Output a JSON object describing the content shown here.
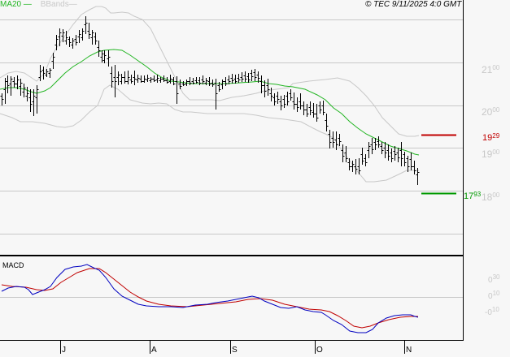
{
  "header": {
    "legend_ma": "MA20",
    "legend_bb": "BBands",
    "copyright": "© TEC 9/11/2025 4:0 GMT"
  },
  "price_axis": {
    "labels": [
      {
        "int": "21",
        "dec": "00",
        "value": 21.0
      },
      {
        "int": "20",
        "dec": "00",
        "value": 20.0
      },
      {
        "int": "19",
        "dec": "00",
        "value": 19.0
      },
      {
        "int": "18",
        "dec": "00",
        "value": 18.0
      }
    ]
  },
  "markers": {
    "resistance": {
      "int": "19",
      "dec": "29",
      "value": 19.29,
      "color": "#c00000"
    },
    "support": {
      "int": "17",
      "dec": "93",
      "value": 17.93,
      "color": "#009900"
    }
  },
  "macd": {
    "title": "MACD",
    "labels": [
      {
        "int": "0",
        "dec": "30"
      },
      {
        "int": "0",
        "dec": "10"
      },
      {
        "int": "-0",
        "dec": "10"
      }
    ]
  },
  "x_axis": {
    "labels": [
      "J",
      "A",
      "S",
      "O",
      "N"
    ]
  },
  "colors": {
    "background": "#f7f7f7",
    "grid": "#c8c8c8",
    "ma20": "#22b522",
    "bbands": "#c8c8c8",
    "macd_line": "#0000c0",
    "signal_line": "#c00000"
  },
  "chart_data": [
    {
      "type": "line",
      "title": "Price (OHLC bars) with MA20 and Bollinger Bands",
      "xlabel": "",
      "ylabel": "",
      "ylim": [
        17.0,
        22.0
      ],
      "grid": true,
      "legend": [
        "MA20",
        "BBands"
      ],
      "x_tick_labels": [
        "J",
        "A",
        "S",
        "O",
        "N"
      ],
      "y_tick_labels": [
        "21.00",
        "20.00",
        "19.00",
        "18.00"
      ],
      "annotations": [
        {
          "label": "19.29",
          "value": 19.29,
          "color": "red"
        },
        {
          "label": "17.93",
          "value": 17.93,
          "color": "green"
        }
      ],
      "series": [
        {
          "name": "Close",
          "values": [
            20.25,
            20.4,
            20.5,
            20.45,
            20.3,
            20.2,
            20.0,
            19.95,
            20.6,
            21.0,
            21.3,
            21.5,
            21.6,
            21.55,
            21.4,
            21.5,
            21.7,
            21.8,
            21.4,
            21.1,
            20.8,
            20.6,
            20.5,
            20.6,
            20.55,
            20.6,
            20.55,
            20.5,
            20.55,
            20.45,
            20.5,
            20.4,
            20.6,
            20.55,
            20.4,
            20.55,
            20.6,
            20.65,
            20.7,
            20.6,
            20.35,
            20.2,
            20.15,
            20.0,
            19.85,
            19.6,
            19.2,
            19.05,
            18.9,
            18.7,
            18.6,
            18.75,
            19.1,
            19.15,
            18.9,
            18.85,
            18.75,
            18.5,
            18.0
          ]
        },
        {
          "name": "MA20",
          "values": [
            20.25,
            20.35,
            20.35,
            20.3,
            20.25,
            20.3,
            20.5,
            20.75,
            21.0,
            21.3,
            21.35,
            21.2,
            20.9,
            20.7,
            20.6,
            20.58,
            20.58,
            20.58,
            20.62,
            20.65,
            20.6,
            20.45,
            20.35,
            20.2,
            19.95,
            19.65,
            19.35,
            19.15,
            19.0,
            18.85,
            18.85
          ]
        },
        {
          "name": "BB Upper",
          "values": [
            20.7,
            20.7,
            20.6,
            20.8,
            21.6,
            21.95,
            22.0,
            21.95,
            22.0,
            21.2,
            20.7,
            20.7,
            20.75,
            20.85,
            20.9,
            21.0,
            20.85,
            20.5,
            19.95,
            19.4,
            19.3
          ]
        },
        {
          "name": "BB Lower",
          "values": [
            19.85,
            19.6,
            19.55,
            19.5,
            19.8,
            20.4,
            20.5,
            20.35,
            20.35,
            20.35,
            20.2,
            19.9,
            19.3,
            18.85,
            18.65,
            18.25,
            18.25,
            18.4,
            18.4
          ]
        }
      ]
    },
    {
      "type": "line",
      "title": "MACD",
      "ylim": [
        -0.3,
        0.4
      ],
      "y_tick_labels": [
        "0.30",
        "0.10",
        "-0.10"
      ],
      "series": [
        {
          "name": "MACD",
          "values": [
            0.12,
            0.16,
            0.15,
            0.07,
            0.13,
            0.18,
            0.28,
            0.34,
            0.34,
            0.37,
            0.31,
            0.17,
            0.0,
            -0.06,
            -0.08,
            -0.09,
            -0.09,
            -0.1,
            -0.06,
            -0.04,
            -0.01,
            0.02,
            0.03,
            -0.01,
            -0.05,
            -0.06,
            -0.1,
            -0.12,
            -0.22,
            -0.33,
            -0.34,
            -0.23,
            -0.13,
            -0.09,
            -0.1
          ]
        },
        {
          "name": "Signal",
          "values": [
            0.16,
            0.14,
            0.14,
            0.13,
            0.11,
            0.12,
            0.21,
            0.28,
            0.32,
            0.35,
            0.32,
            0.24,
            0.1,
            0.02,
            -0.06,
            -0.09,
            -0.07,
            -0.05,
            -0.04,
            -0.02,
            0.0,
            -0.03,
            -0.06,
            -0.08,
            -0.1,
            -0.14,
            -0.21,
            -0.26,
            -0.28,
            -0.22,
            -0.18,
            -0.13,
            -0.12
          ]
        }
      ]
    }
  ]
}
